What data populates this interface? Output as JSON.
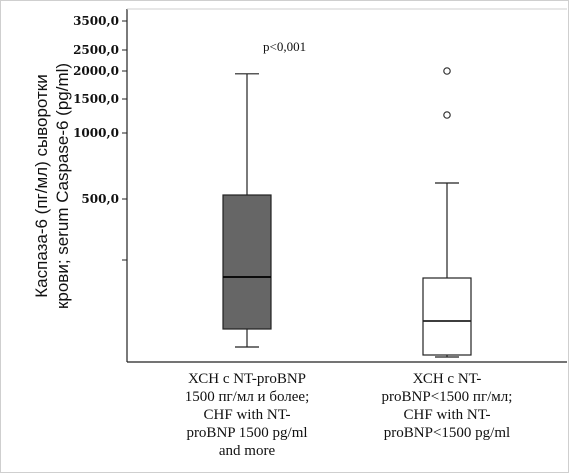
{
  "chart_data": {
    "type": "box",
    "ylabel_lines": [
      "Каспаза-6 (пг/мл) сыворотки",
      "крови; serum Caspase-6 (pg/ml)"
    ],
    "y_tick_labels": [
      "3500,0",
      "2500,0",
      "2000,0",
      "1500,0",
      "1000,0",
      "500,0"
    ],
    "y_scale": "nonlinear (compressed near top)",
    "annotation": "p<0,001",
    "categories": [
      {
        "label_lines": [
          "ХСН с NT-proBNP",
          "1500 пг/мл и более;",
          "CHF with NT-",
          "proBNP 1500 pg/ml",
          "and  more"
        ],
        "whisker_low": 25,
        "q1": 70,
        "median": 230,
        "q3": 520,
        "whisker_high": 1950,
        "outliers": [],
        "fill": "#666666"
      },
      {
        "label_lines": [
          "ХСН с NT-",
          "proBNP<1500 пг/мл;",
          "CHF with NT-",
          "proBNP<1500 pg/ml"
        ],
        "whisker_low": 5,
        "q1": 10,
        "median": 100,
        "q3": 220,
        "whisker_high": 650,
        "outliers": [
          1250,
          2000
        ],
        "fill": "#ffffff"
      }
    ]
  }
}
